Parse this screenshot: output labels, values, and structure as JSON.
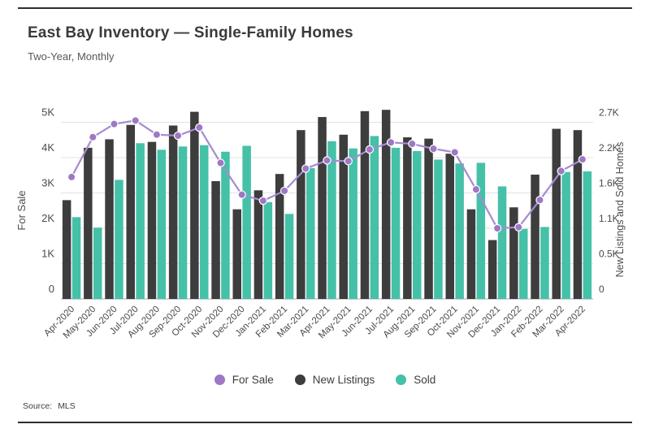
{
  "header": {
    "title": "East Bay Inventory — Single-Family Homes",
    "subtitle": "Two-Year, Monthly"
  },
  "legend": {
    "items": [
      {
        "label": "For Sale",
        "color": "#9d79c4"
      },
      {
        "label": "New Listings",
        "color": "#3d3d3d"
      },
      {
        "label": "Sold",
        "color": "#45c1a8"
      }
    ]
  },
  "footer": {
    "source_label": "Source:",
    "source_value": "MLS"
  },
  "chart_data": {
    "type": "combo",
    "categories": [
      "Apr-2020",
      "May-2020",
      "Jun-2020",
      "Jul-2020",
      "Aug-2020",
      "Sep-2020",
      "Oct-2020",
      "Nov-2020",
      "Dec-2020",
      "Jan-2021",
      "Feb-2021",
      "Mar-2021",
      "Apr-2021",
      "May-2021",
      "Jun-2021",
      "Jul-2021",
      "Aug-2021",
      "Sep-2021",
      "Oct-2021",
      "Nov-2021",
      "Dec-2021",
      "Jan-2022",
      "Feb-2022",
      "Mar-2022",
      "Apr-2022"
    ],
    "series": [
      {
        "name": "For Sale",
        "kind": "line",
        "axis": "left",
        "color": "#a58bd0",
        "dot_color": "#9d79c4",
        "values": [
          3450,
          4580,
          4950,
          5050,
          4650,
          4620,
          4850,
          3850,
          2950,
          2780,
          3060,
          3690,
          3920,
          3900,
          4230,
          4430,
          4390,
          4250,
          4150,
          3100,
          2000,
          2030,
          2800,
          3620,
          3950
        ]
      },
      {
        "name": "New Listings",
        "kind": "bar",
        "axis": "right",
        "color": "#3d3d3d",
        "values": [
          1510,
          2310,
          2440,
          2660,
          2400,
          2650,
          2860,
          1800,
          1370,
          1660,
          1910,
          2580,
          2780,
          2510,
          2870,
          2890,
          2470,
          2450,
          2220,
          1370,
          900,
          1400,
          1900,
          2600,
          2580
        ]
      },
      {
        "name": "Sold",
        "kind": "bar",
        "axis": "right",
        "color": "#45c1a8",
        "values": [
          1250,
          1090,
          1820,
          2380,
          2280,
          2330,
          2350,
          2250,
          2340,
          1480,
          1300,
          2000,
          2410,
          2300,
          2490,
          2310,
          2260,
          2130,
          2070,
          2080,
          1720,
          1070,
          1100,
          1940,
          1950
        ]
      }
    ],
    "left_axis": {
      "title": "For Sale",
      "min": 0,
      "max": 5000,
      "ticks": [
        {
          "value": 0,
          "label": "0"
        },
        {
          "value": 1000,
          "label": "1K"
        },
        {
          "value": 2000,
          "label": "2K"
        },
        {
          "value": 3000,
          "label": "3K"
        },
        {
          "value": 4000,
          "label": "4K"
        },
        {
          "value": 5000,
          "label": "5K"
        }
      ]
    },
    "right_axis": {
      "title": "New Listings and Sold Homes",
      "min": 0,
      "max": 2700,
      "ticks": [
        "0",
        "0.5K",
        "1.1K",
        "1.6K",
        "2.2K",
        "2.7K"
      ]
    },
    "grid": true,
    "legend_position": "bottom"
  }
}
